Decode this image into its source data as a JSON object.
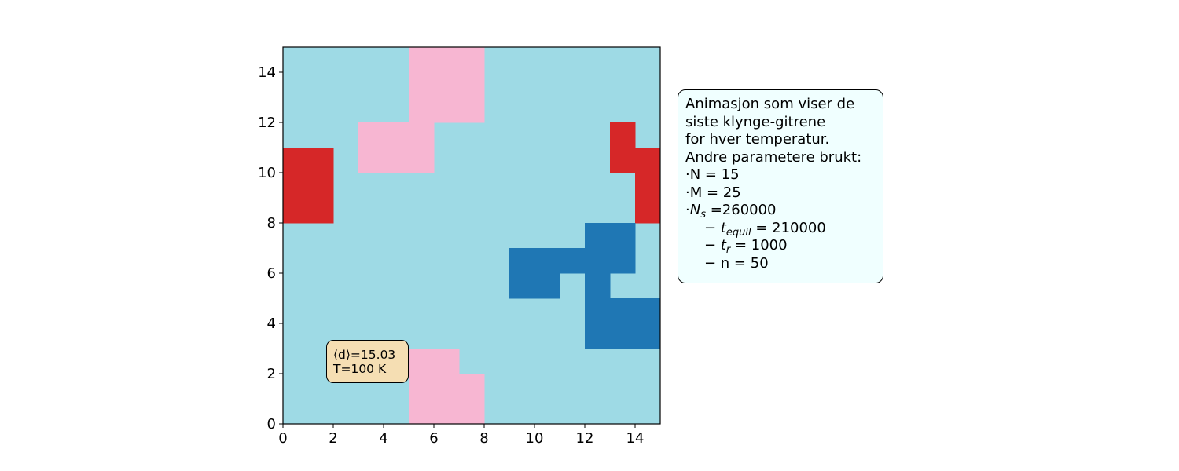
{
  "chart_data": {
    "type": "heatmap",
    "grid_size": 15,
    "xlim": [
      0,
      15
    ],
    "ylim": [
      0,
      15
    ],
    "xticks": [
      0,
      2,
      4,
      6,
      8,
      10,
      12,
      14
    ],
    "yticks": [
      0,
      2,
      4,
      6,
      8,
      10,
      12,
      14
    ],
    "background_color": "#9edae5",
    "clusters": [
      {
        "color": "#f7b6d2",
        "cells": [
          [
            5,
            12
          ],
          [
            5,
            13
          ],
          [
            5,
            14
          ],
          [
            6,
            12
          ],
          [
            6,
            13
          ],
          [
            6,
            14
          ],
          [
            7,
            12
          ],
          [
            7,
            13
          ],
          [
            7,
            14
          ],
          [
            3,
            10
          ],
          [
            3,
            11
          ],
          [
            4,
            10
          ],
          [
            4,
            11
          ],
          [
            5,
            10
          ],
          [
            5,
            11
          ]
        ]
      },
      {
        "color": "#d62728",
        "cells": [
          [
            0,
            8
          ],
          [
            0,
            9
          ],
          [
            0,
            10
          ],
          [
            1,
            8
          ],
          [
            1,
            9
          ],
          [
            1,
            10
          ],
          [
            13,
            10
          ],
          [
            13,
            11
          ],
          [
            14,
            8
          ],
          [
            14,
            9
          ],
          [
            14,
            10
          ]
        ]
      },
      {
        "color": "#1f77b4",
        "cells": [
          [
            9,
            5
          ],
          [
            9,
            6
          ],
          [
            10,
            5
          ],
          [
            10,
            6
          ],
          [
            11,
            6
          ],
          [
            12,
            3
          ],
          [
            12,
            4
          ],
          [
            12,
            5
          ],
          [
            12,
            6
          ],
          [
            12,
            7
          ],
          [
            13,
            6
          ],
          [
            13,
            7
          ],
          [
            13,
            3
          ],
          [
            13,
            4
          ],
          [
            14,
            3
          ],
          [
            14,
            4
          ]
        ]
      },
      {
        "color": "#f7b6d2",
        "cells": [
          [
            5,
            0
          ],
          [
            5,
            1
          ],
          [
            5,
            2
          ],
          [
            6,
            0
          ],
          [
            6,
            1
          ],
          [
            6,
            2
          ],
          [
            7,
            0
          ],
          [
            7,
            1
          ]
        ]
      }
    ],
    "annotation": {
      "d_label": "⟨d⟩=15.03",
      "temp_label": "T=100 K"
    },
    "params_box": {
      "line1": "Animasjon som viser de",
      "line2": "siste klynge-gitrene",
      "line3": "for hver temperatur.",
      "line4": "Andre parametere brukt:",
      "N": "·N = 15",
      "M": "·M = 25",
      "Ns_prefix": "·",
      "Ns_var": "N",
      "Ns_sub": "s",
      "Ns_value": " =260000",
      "tequil_dash": "− ",
      "tequil_var": "t",
      "tequil_sub": "equil",
      "tequil_value": " = 210000",
      "tr_dash": "− ",
      "tr_var": "t",
      "tr_sub": "r",
      "tr_value": " = 1000",
      "n_line": "− n = 50"
    }
  }
}
